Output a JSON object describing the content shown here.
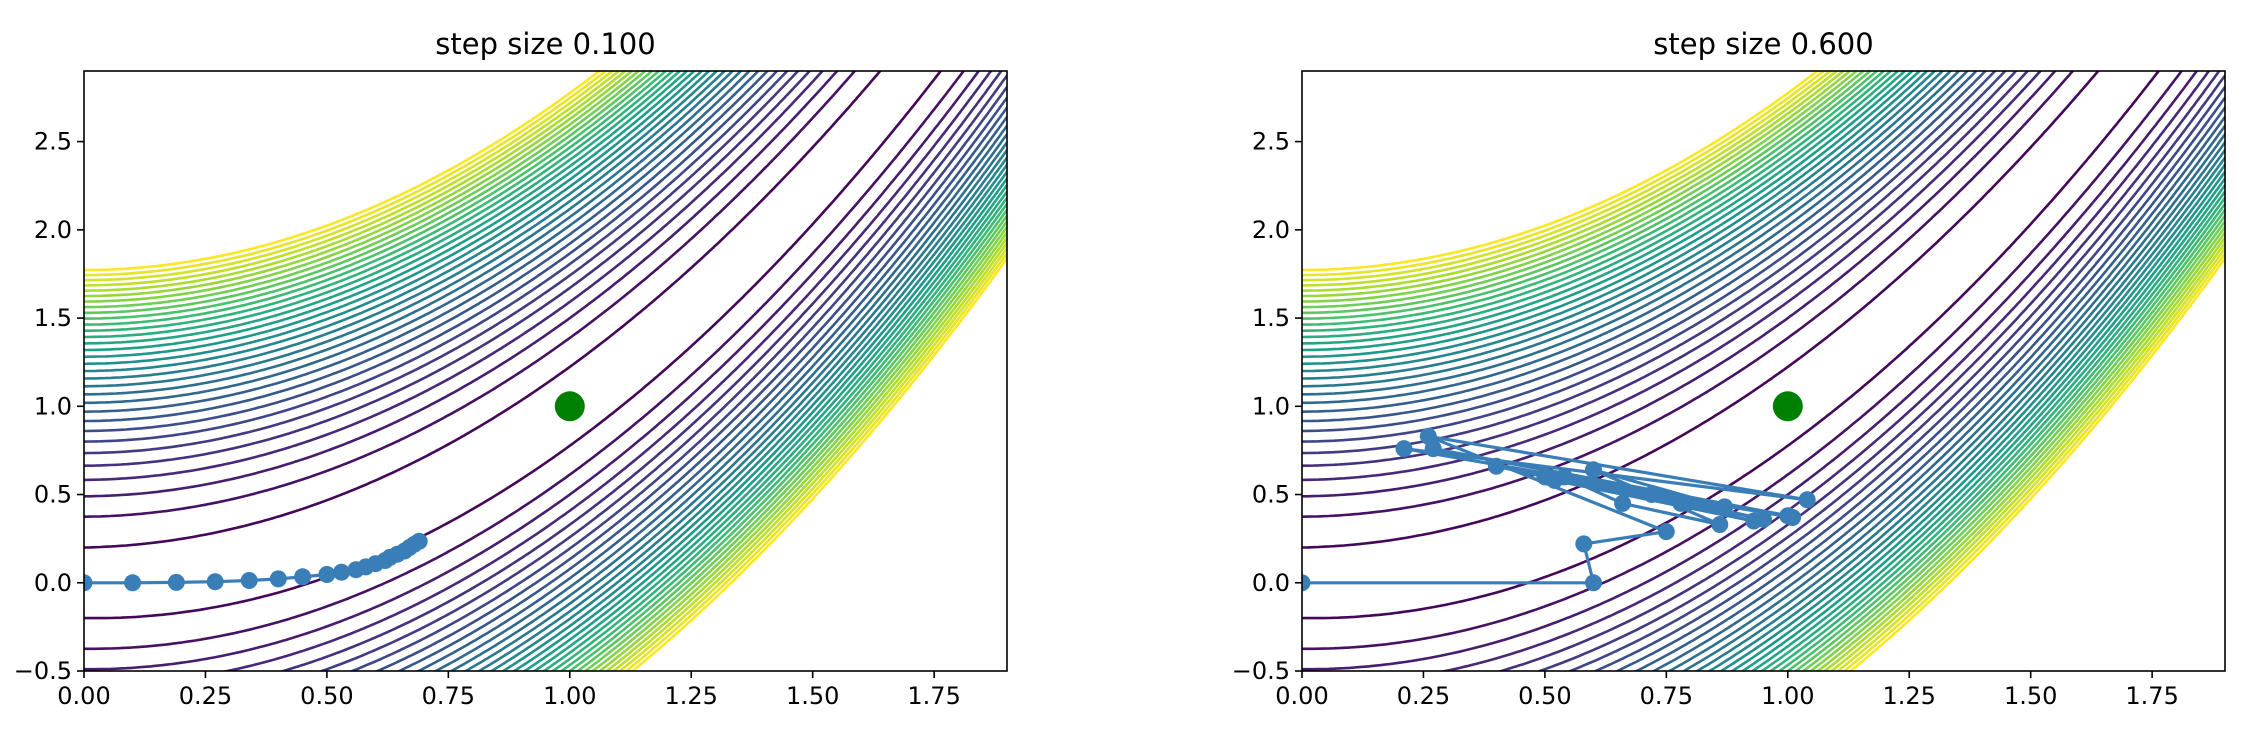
{
  "chart_data": [
    {
      "type": "line",
      "title": "step size 0.100",
      "xlabel": "",
      "ylabel": "",
      "xlim": [
        0.0,
        1.9
      ],
      "ylim": [
        -0.5,
        2.9
      ],
      "x_ticks": [
        "0.00",
        "0.25",
        "0.50",
        "0.75",
        "1.00",
        "1.25",
        "1.50",
        "1.75"
      ],
      "y_ticks": [
        "−0.5",
        "0.0",
        "0.5",
        "1.0",
        "1.5",
        "2.0",
        "2.5"
      ],
      "background": "contour plot of the Rosenbrock function (viridis colormap)",
      "minimum_marker": {
        "x": 1.0,
        "y": 1.0,
        "color": "#008000"
      },
      "series": [
        {
          "color": "#3a7eb8",
          "points": [
            [
              0.0,
              0.0
            ],
            [
              0.1,
              0.0
            ],
            [
              0.19,
              0.002
            ],
            [
              0.27,
              0.006
            ],
            [
              0.34,
              0.013
            ],
            [
              0.4,
              0.022
            ],
            [
              0.45,
              0.034
            ],
            [
              0.5,
              0.047
            ],
            [
              0.53,
              0.06
            ],
            [
              0.56,
              0.074
            ],
            [
              0.58,
              0.09
            ],
            [
              0.6,
              0.108
            ],
            [
              0.62,
              0.126
            ],
            [
              0.63,
              0.144
            ],
            [
              0.645,
              0.162
            ],
            [
              0.66,
              0.18
            ],
            [
              0.67,
              0.2
            ],
            [
              0.68,
              0.218
            ],
            [
              0.69,
              0.235
            ]
          ]
        }
      ]
    },
    {
      "type": "line",
      "title": "step size 0.600",
      "xlabel": "",
      "ylabel": "",
      "xlim": [
        0.0,
        1.9
      ],
      "ylim": [
        -0.5,
        2.9
      ],
      "x_ticks": [
        "0.00",
        "0.25",
        "0.50",
        "0.75",
        "1.00",
        "1.25",
        "1.50",
        "1.75"
      ],
      "y_ticks": [
        "−0.5",
        "0.0",
        "0.5",
        "1.0",
        "1.5",
        "2.0",
        "2.5"
      ],
      "background": "contour plot of the Rosenbrock function (viridis colormap)",
      "minimum_marker": {
        "x": 1.0,
        "y": 1.0,
        "color": "#008000"
      },
      "series": [
        {
          "color": "#3a7eb8",
          "points": [
            [
              0.0,
              0.0
            ],
            [
              0.6,
              0.0
            ],
            [
              0.58,
              0.22
            ],
            [
              0.75,
              0.29
            ],
            [
              0.26,
              0.83
            ],
            [
              1.04,
              0.47
            ],
            [
              0.21,
              0.76
            ],
            [
              1.0,
              0.38
            ],
            [
              0.27,
              0.76
            ],
            [
              1.01,
              0.37
            ],
            [
              0.4,
              0.66
            ],
            [
              0.93,
              0.35
            ],
            [
              0.52,
              0.58
            ],
            [
              0.87,
              0.43
            ],
            [
              0.6,
              0.64
            ],
            [
              0.86,
              0.33
            ],
            [
              0.66,
              0.45
            ],
            [
              0.54,
              0.6
            ],
            [
              0.78,
              0.45
            ],
            [
              0.72,
              0.5
            ],
            [
              0.95,
              0.36
            ],
            [
              0.5,
              0.6
            ]
          ]
        }
      ]
    }
  ]
}
